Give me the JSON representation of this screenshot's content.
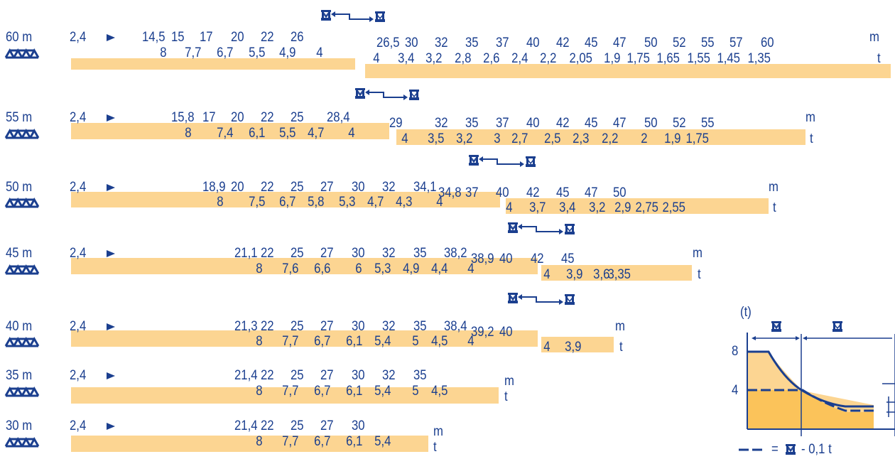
{
  "colors": {
    "text": "#1b3f8f",
    "bar": "#fcd592",
    "bar_dark": "#f9bd58",
    "chart_light": "#fcd592",
    "chart_dark": "#fbc35a"
  },
  "icons": {
    "jib_symbol": "jib-lattice-icon",
    "arrow": "pointer-arrow-icon",
    "trolley": "trolley-hook-icon",
    "double_trolley": "double-trolley-hook-icon"
  },
  "rows": [
    {
      "jib": "60 m",
      "start": "2,4",
      "unit_m": "m",
      "unit_t": "t",
      "row1": [
        "14,5",
        "15",
        "17",
        "20",
        "22",
        "26"
      ],
      "row2": [
        "26,5",
        "30",
        "32",
        "35",
        "37",
        "40",
        "42",
        "45",
        "47",
        "50",
        "52",
        "55",
        "57",
        "60"
      ],
      "loads1": [
        "8",
        "7,7",
        "6,7",
        "5,5",
        "4,9",
        "4"
      ],
      "loads2": [
        "4",
        "3,4",
        "3,2",
        "2,8",
        "2,6",
        "2,4",
        "2,2",
        "2,05",
        "1,9",
        "1,75",
        "1,65",
        "1,55",
        "1,45",
        "1,35"
      ]
    },
    {
      "jib": "55 m",
      "start": "2,4",
      "unit_m": "m",
      "unit_t": "t",
      "row1": [
        "15,8",
        "17",
        "20",
        "22",
        "25",
        "28,4"
      ],
      "row2": [
        "29",
        "32",
        "35",
        "37",
        "40",
        "42",
        "45",
        "47",
        "50",
        "52",
        "55"
      ],
      "loads1": [
        "8",
        "7,4",
        "6,1",
        "5,5",
        "4,7",
        "4"
      ],
      "loads2": [
        "4",
        "3,5",
        "3,2",
        "3",
        "2,7",
        "2,5",
        "2,3",
        "2,2",
        "2",
        "1,9",
        "1,75"
      ]
    },
    {
      "jib": "50 m",
      "start": "2,4",
      "unit_m": "m",
      "unit_t": "t",
      "row1": [
        "18,9",
        "20",
        "22",
        "25",
        "27",
        "30",
        "32",
        "34,1"
      ],
      "row2": [
        "34,8",
        "37",
        "40",
        "42",
        "45",
        "47",
        "50"
      ],
      "loads1": [
        "8",
        "7,5",
        "6,7",
        "5,8",
        "5,3",
        "4,7",
        "4,3",
        "4"
      ],
      "loads2": [
        "4",
        "3,7",
        "3,4",
        "3,2",
        "2,9",
        "2,75",
        "2,55"
      ]
    },
    {
      "jib": "45 m",
      "start": "2,4",
      "unit_m": "m",
      "unit_t": "t",
      "row1": [
        "21,1",
        "22",
        "25",
        "27",
        "30",
        "32",
        "35",
        "38,2"
      ],
      "row2": [
        "38,9",
        "40",
        "42",
        "45"
      ],
      "loads1": [
        "8",
        "7,6",
        "6,6",
        "6",
        "5,3",
        "4,9",
        "4,4",
        "4"
      ],
      "loads2": [
        "4",
        "3,9",
        "3,6",
        "3,35"
      ]
    },
    {
      "jib": "40 m",
      "start": "2,4",
      "unit_m": "m",
      "unit_t": "t",
      "row1": [
        "21,3",
        "22",
        "25",
        "27",
        "30",
        "32",
        "35",
        "38,4"
      ],
      "row2": [
        "39,2",
        "40"
      ],
      "loads1": [
        "8",
        "7,7",
        "6,7",
        "6,1",
        "5,4",
        "5",
        "4,5",
        "4"
      ],
      "loads2": [
        "4",
        "3,9"
      ]
    },
    {
      "jib": "35 m",
      "start": "2,4",
      "unit_m": "m",
      "unit_t": "t",
      "row1": [
        "21,4",
        "22",
        "25",
        "27",
        "30",
        "32",
        "35"
      ],
      "row2": [],
      "loads1": [
        "8",
        "7,7",
        "6,7",
        "6,1",
        "5,4",
        "5",
        "4,5"
      ],
      "loads2": []
    },
    {
      "jib": "30 m",
      "start": "2,4",
      "unit_m": "m",
      "unit_t": "t",
      "row1": [
        "21,4",
        "22",
        "25",
        "27",
        "30"
      ],
      "row2": [],
      "loads1": [
        "8",
        "7,7",
        "6,7",
        "6,1",
        "5,4"
      ],
      "loads2": []
    }
  ],
  "legend": {
    "y_unit": "(t)",
    "tick_high": "8",
    "tick_low": "4",
    "caption_eq": "=",
    "caption_tail": "- 0,1 t"
  }
}
